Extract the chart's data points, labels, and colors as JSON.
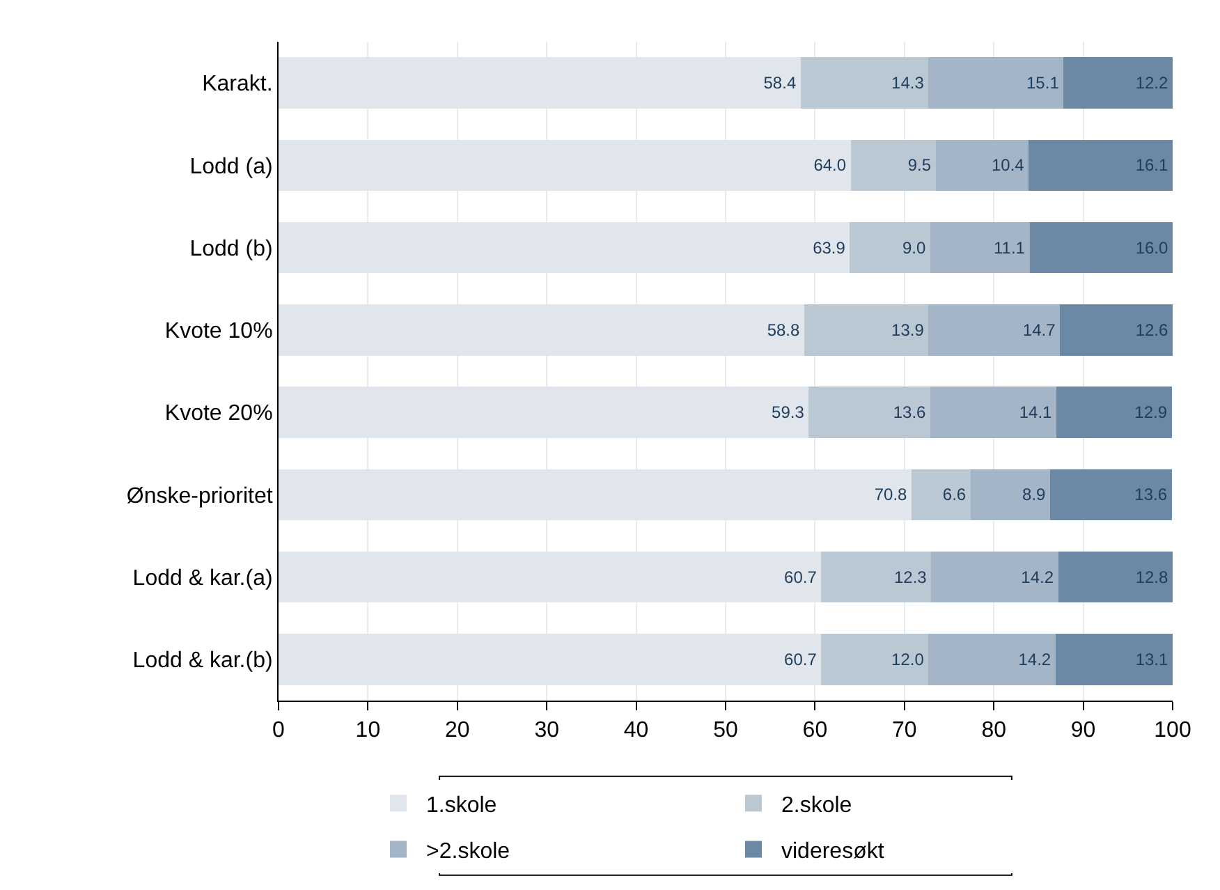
{
  "chart_data": {
    "type": "bar",
    "orientation": "horizontal",
    "stacked": true,
    "categories": [
      "Karakt.",
      "Lodd (a)",
      "Lodd (b)",
      "Kvote 10%",
      "Kvote 20%",
      "Ønske-prioritet",
      "Lodd & kar.(a)",
      "Lodd & kar.(b)"
    ],
    "series": [
      {
        "name": "1.skole",
        "color": "#e1e6ec",
        "values": [
          58.4,
          64.0,
          63.9,
          58.8,
          59.3,
          70.8,
          60.7,
          60.7
        ],
        "value_labels": [
          "58.4",
          "64.0",
          "63.9",
          "58.8",
          "59.3",
          "70.8",
          "60.7",
          "60.7"
        ]
      },
      {
        "name": "2.skole",
        "color": "#bac8d4",
        "values": [
          14.3,
          9.5,
          9.0,
          13.9,
          13.6,
          6.6,
          12.3,
          12.0
        ],
        "value_labels": [
          "14.3",
          "9.5",
          "9.0",
          "13.9",
          "13.6",
          "6.6",
          "12.3",
          "12.0"
        ]
      },
      {
        "name": ">2.skole",
        "color": "#a3b5c7",
        "values": [
          15.1,
          10.4,
          11.1,
          14.7,
          14.1,
          8.9,
          14.2,
          14.2
        ],
        "value_labels": [
          "15.1",
          "10.4",
          "11.1",
          "14.7",
          "14.1",
          "8.9",
          "14.2",
          "14.2"
        ]
      },
      {
        "name": "videresøkt",
        "color": "#6b89a5",
        "values": [
          12.2,
          16.1,
          16.0,
          12.6,
          12.9,
          13.6,
          12.8,
          13.1
        ],
        "value_labels": [
          "12.2",
          "16.1",
          "16.0",
          "12.6",
          "12.9",
          "13.6",
          "12.8",
          "13.1"
        ]
      }
    ],
    "xlim": [
      0,
      100
    ],
    "xticks": [
      0,
      10,
      20,
      30,
      40,
      50,
      60,
      70,
      80,
      90,
      100
    ],
    "grid": "x",
    "legend": "bottom"
  }
}
